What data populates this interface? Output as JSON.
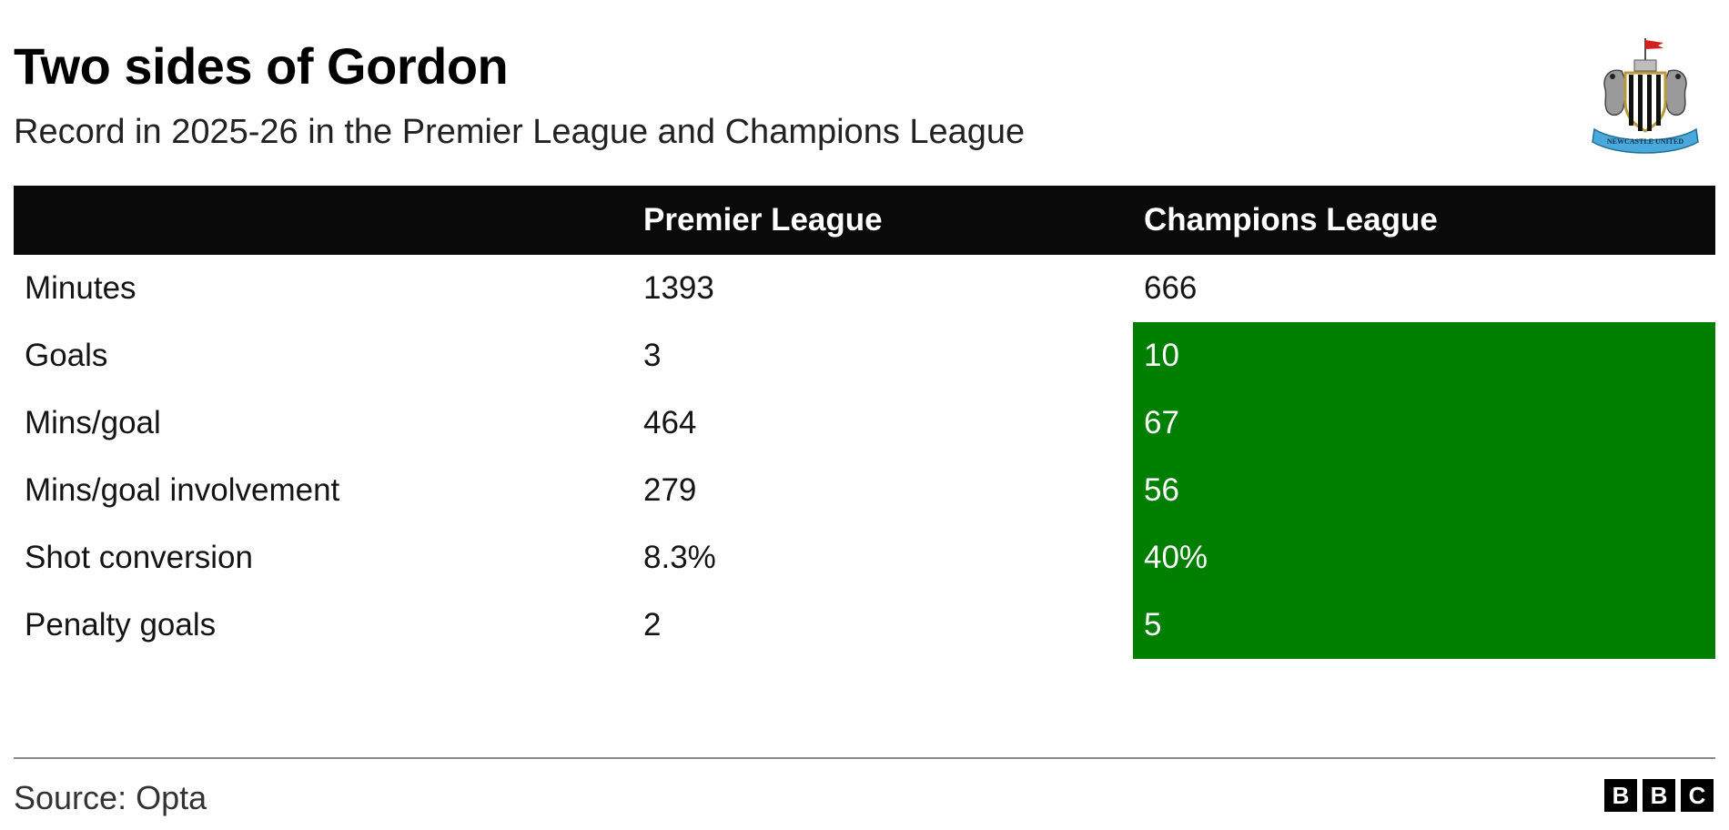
{
  "title": "Two sides of Gordon",
  "subtitle": "Record in 2025-26 in the Premier League and Champions League",
  "crest": {
    "icon": "newcastle-united-crest-icon",
    "text": "NEWCASTLE UNITED"
  },
  "colors": {
    "highlight": "#007f00",
    "header_bg": "#0a0a0a"
  },
  "chart_data": {
    "type": "table",
    "columns": [
      "",
      "Premier League",
      "Champions League"
    ],
    "rows": [
      {
        "label": "Minutes",
        "premier_league": "1393",
        "champions_league": "666",
        "highlight": false
      },
      {
        "label": "Goals",
        "premier_league": "3",
        "champions_league": "10",
        "highlight": true
      },
      {
        "label": "Mins/goal",
        "premier_league": "464",
        "champions_league": "67",
        "highlight": true
      },
      {
        "label": "Mins/goal involvement",
        "premier_league": "279",
        "champions_league": "56",
        "highlight": true
      },
      {
        "label": "Shot conversion",
        "premier_league": "8.3%",
        "champions_league": "40%",
        "highlight": true
      },
      {
        "label": "Penalty goals",
        "premier_league": "2",
        "champions_league": "5",
        "highlight": true
      }
    ]
  },
  "source": "Source: Opta",
  "brand": {
    "letters": [
      "B",
      "B",
      "C"
    ],
    "icon": "bbc-logo-icon"
  }
}
